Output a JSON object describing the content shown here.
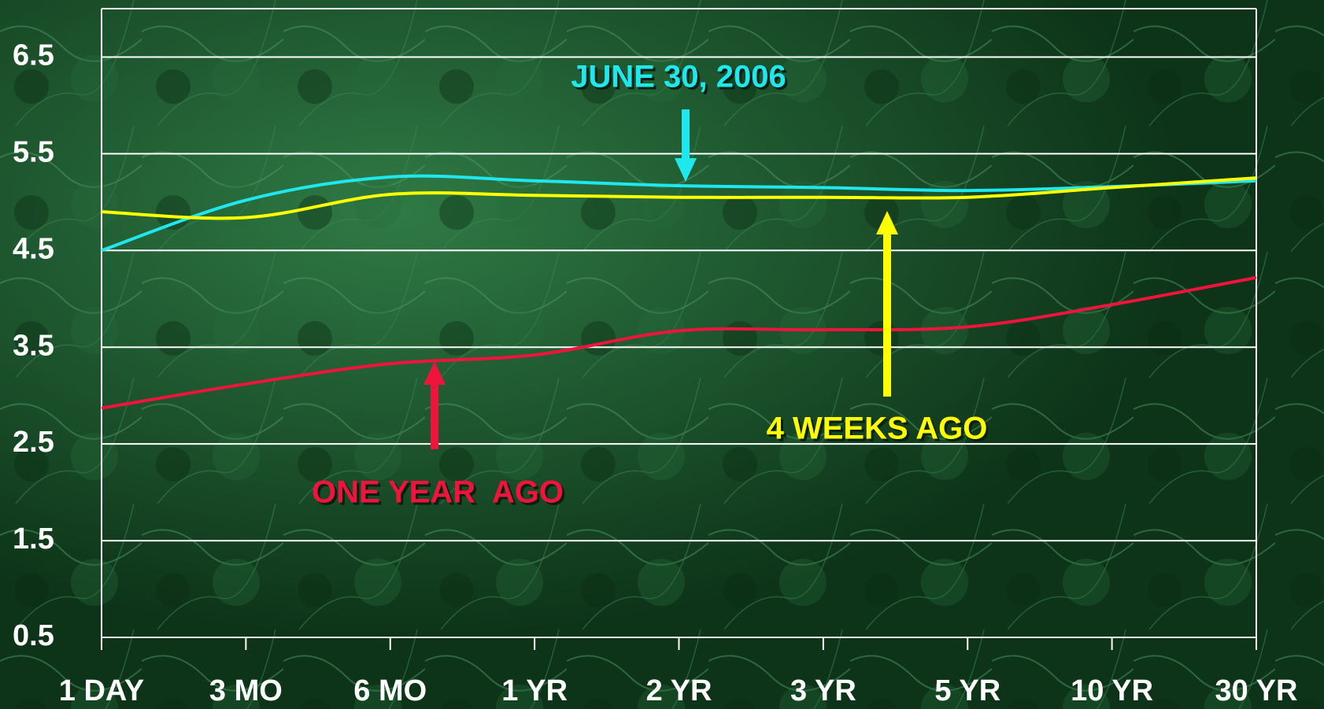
{
  "chart_data": {
    "type": "line",
    "categories": [
      "1 DAY",
      "3 MO",
      "6 MO",
      "1 YR",
      "2 YR",
      "3 YR",
      "5 YR",
      "10 YR",
      "30 YR"
    ],
    "series": [
      {
        "name": "JUNE 30, 2006",
        "color": "#1ee8ee",
        "values": [
          4.5,
          5.02,
          5.26,
          5.22,
          5.17,
          5.15,
          5.12,
          5.16,
          5.22
        ]
      },
      {
        "name": "4 WEEKS AGO",
        "color": "#ffff00",
        "values": [
          4.9,
          4.84,
          5.08,
          5.07,
          5.05,
          5.05,
          5.05,
          5.15,
          5.25
        ]
      },
      {
        "name": "ONE YEAR  AGO",
        "color": "#f0143c",
        "values": [
          2.87,
          3.12,
          3.33,
          3.42,
          3.67,
          3.68,
          3.71,
          3.94,
          4.22
        ]
      }
    ],
    "ylim": [
      0.5,
      7.0
    ],
    "yticks": [
      0.5,
      1.5,
      2.5,
      3.5,
      4.5,
      5.5,
      6.5
    ],
    "grid": true
  }
}
